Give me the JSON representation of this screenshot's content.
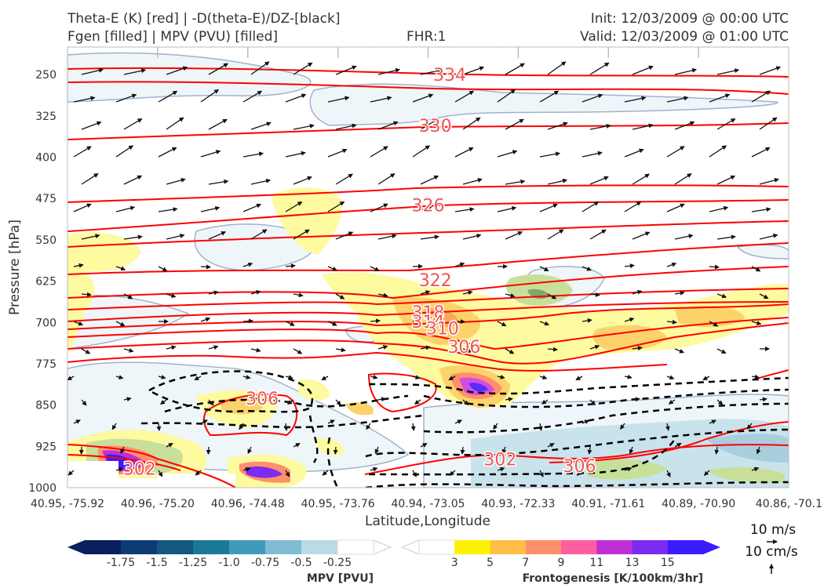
{
  "header": {
    "title_line1": "Theta-E (K) [red] | -D(theta-E)/DZ-[black]",
    "title_line2": "Fgen [filled] | MPV (PVU) [filled]",
    "fhr": "FHR:1",
    "init": "Init: 12/03/2009 @ 00:00 UTC",
    "valid": "Valid: 12/03/2009 @ 01:00 UTC"
  },
  "chart_data": {
    "type": "cross-section",
    "xlabel": "Latitude,Longitude",
    "ylabel": "Pressure [hPa]",
    "x_ticks": [
      "40.95, -75.92",
      "40.96, -75.20",
      "40.96, -74.48",
      "40.95, -73.76",
      "40.94, -73.05",
      "40.93, -72.33",
      "40.91, -71.61",
      "40.89, -70.90",
      "40.86, -70.1"
    ],
    "y_ticks": [
      250,
      325,
      400,
      475,
      550,
      625,
      700,
      775,
      850,
      925,
      1000
    ],
    "ylim": [
      1000,
      200
    ],
    "theta_e_contour_labels": [
      {
        "value": "334",
        "x": 0.53,
        "p": 250
      },
      {
        "value": "330",
        "x": 0.51,
        "p": 342
      },
      {
        "value": "326",
        "x": 0.5,
        "p": 487
      },
      {
        "value": "322",
        "x": 0.51,
        "p": 623
      },
      {
        "value": "318",
        "x": 0.5,
        "p": 681
      },
      {
        "value": "314",
        "x": 0.5,
        "p": 698
      },
      {
        "value": "310",
        "x": 0.52,
        "p": 710
      },
      {
        "value": "306",
        "x": 0.55,
        "p": 744
      },
      {
        "value": "306",
        "x": 0.27,
        "p": 838
      },
      {
        "value": "302",
        "x": 0.1,
        "p": 965
      },
      {
        "value": "302",
        "x": 0.6,
        "p": 948
      },
      {
        "value": "306",
        "x": 0.71,
        "p": 960
      }
    ],
    "wind_reference": {
      "horizontal": "10 m/s",
      "vertical": "10 cm/s"
    },
    "colorbars": [
      {
        "label": "MPV [PVU]",
        "ticks": [
          "-1.75",
          "-1.5",
          "-1.25",
          "-1.0",
          "-0.75",
          "-0.5",
          "-0.25"
        ],
        "colors": [
          "#0a1f5c",
          "#0e3b73",
          "#12587f",
          "#1a7a96",
          "#3f9bb8",
          "#7fbcd3",
          "#b8dbe6",
          "#ffffff"
        ]
      },
      {
        "label": "Frontogenesis [K/100km/3hr]",
        "ticks": [
          "3",
          "5",
          "7",
          "9",
          "11",
          "13",
          "15"
        ],
        "colors": [
          "#ffffff",
          "#fff200",
          "#ffbf47",
          "#ff8f6b",
          "#ff5fa0",
          "#c02fd6",
          "#7a2cf0",
          "#3a1cff"
        ]
      }
    ],
    "colors": {
      "theta_e": "#ff0000",
      "dthetae_dz": "#000000"
    }
  }
}
